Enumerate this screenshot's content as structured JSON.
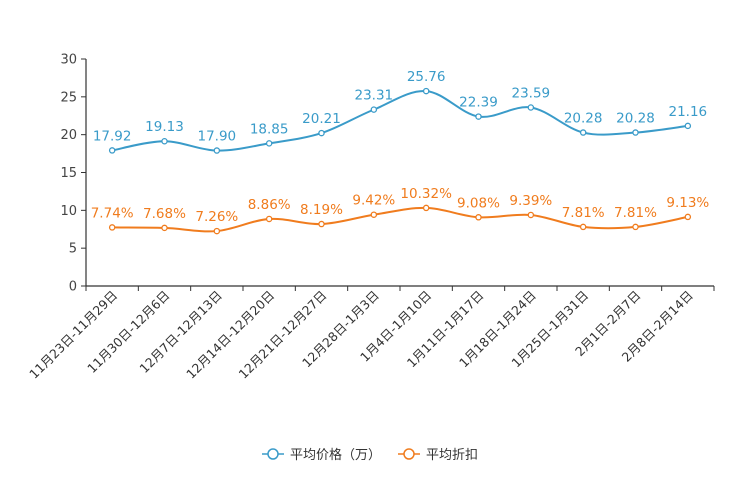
{
  "chart_data": {
    "type": "line",
    "title": "",
    "xlabel": "",
    "ylabel": "",
    "ylim": [
      0,
      30
    ],
    "yticks": [
      0,
      5,
      10,
      15,
      20,
      25,
      30
    ],
    "grid": false,
    "legend_position": "bottom-center",
    "categories": [
      "11月23日-11月29日",
      "11月30日-12月6日",
      "12月7日-12月13日",
      "12月14日-12月20日",
      "12月21日-12月27日",
      "12月28日-1月3日",
      "1月4日-1月10日",
      "1月11日-1月17日",
      "1月18日-1月24日",
      "1月25日-1月31日",
      "2月1日-2月7日",
      "2月8日-2月14日"
    ],
    "series": [
      {
        "name": "平均价格（万）",
        "color": "#3a9bc9",
        "values": [
          17.92,
          19.13,
          17.9,
          18.85,
          20.21,
          23.31,
          25.76,
          22.39,
          23.59,
          20.28,
          20.28,
          21.16
        ],
        "labels": [
          "17.92",
          "19.13",
          "17.90",
          "18.85",
          "20.21",
          "23.31",
          "25.76",
          "22.39",
          "23.59",
          "20.28",
          "20.28",
          "21.16"
        ]
      },
      {
        "name": "平均折扣",
        "color": "#f07c1e",
        "values": [
          7.74,
          7.68,
          7.26,
          8.86,
          8.19,
          9.42,
          10.32,
          9.08,
          9.39,
          7.81,
          7.81,
          9.13
        ],
        "labels": [
          "7.74%",
          "7.68%",
          "7.26%",
          "8.86%",
          "8.19%",
          "9.42%",
          "10.32%",
          "9.08%",
          "9.39%",
          "7.81%",
          "7.81%",
          "9.13%"
        ]
      }
    ]
  }
}
